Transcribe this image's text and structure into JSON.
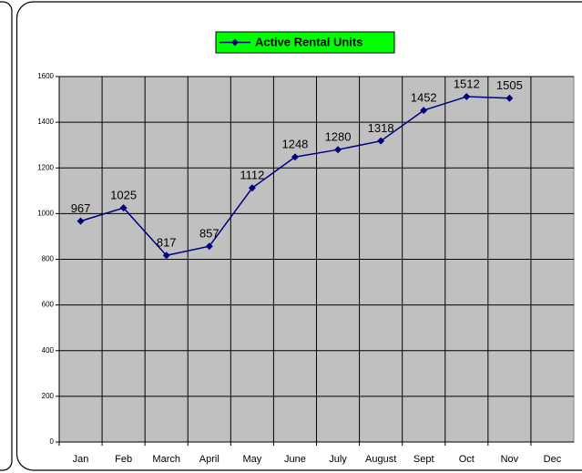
{
  "chart_data": {
    "type": "line",
    "categories": [
      "Jan",
      "Feb",
      "March",
      "April",
      "May",
      "June",
      "July",
      "August",
      "Sept",
      "Oct",
      "Nov",
      "Dec"
    ],
    "series": [
      {
        "name": "Active Rental Units",
        "color": "#000080",
        "values": [
          967,
          1025,
          817,
          857,
          1112,
          1248,
          1280,
          1318,
          1452,
          1512,
          1505,
          null
        ]
      }
    ],
    "ylim": [
      0,
      1600
    ],
    "yticks": [
      0,
      200,
      400,
      600,
      800,
      1000,
      1200,
      1400,
      1600
    ],
    "grid": true,
    "legend": "top",
    "plot_background": "#c0c0c0",
    "legend_background": "#00ff00",
    "data_labels": true
  }
}
